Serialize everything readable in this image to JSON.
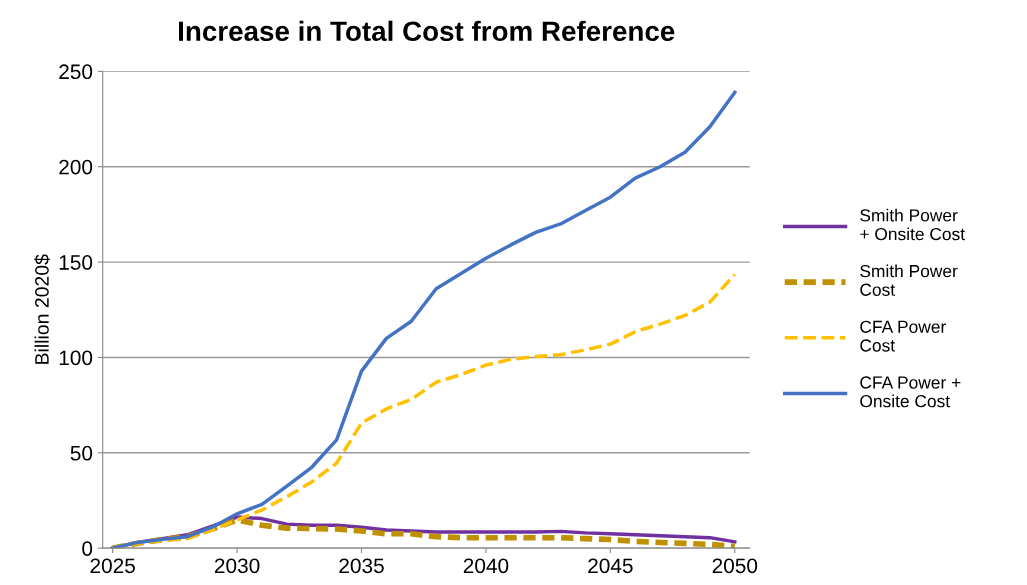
{
  "chart_data": {
    "type": "line",
    "title": "Increase in Total Cost from Reference",
    "ylabel": "Billion 2020$",
    "x": [
      2025,
      2026,
      2027,
      2028,
      2029,
      2030,
      2031,
      2032,
      2033,
      2034,
      2035,
      2036,
      2037,
      2038,
      2039,
      2040,
      2041,
      2042,
      2043,
      2044,
      2045,
      2046,
      2047,
      2048,
      2049,
      2050
    ],
    "xlim": [
      2024.6,
      2050.6
    ],
    "xticks": [
      2025,
      2030,
      2035,
      2040,
      2045,
      2050
    ],
    "ylim": [
      0,
      250
    ],
    "yticks": [
      0,
      50,
      100,
      150,
      200,
      250
    ],
    "grid": "y",
    "legend": "right",
    "marker": "none",
    "series": [
      {
        "name": "Smith Power\n+ Onsite Cost",
        "color": "#7030a0",
        "line_style": "solid",
        "values": [
          0,
          3,
          5,
          7,
          11.5,
          16.3,
          15.5,
          12.6,
          12,
          12,
          11,
          9.5,
          9,
          8.5,
          8.5,
          8.5,
          8.5,
          8.5,
          8.8,
          8,
          7.5,
          7,
          6.5,
          6,
          5.5,
          3.3
        ]
      },
      {
        "name": "Smith Power\nCost",
        "color": "#bf9000",
        "line_style": "dashed",
        "values": [
          0,
          2.5,
          4.5,
          6,
          10,
          14.8,
          12,
          10.5,
          10.3,
          10,
          9,
          7.5,
          7.5,
          6,
          5.5,
          5.5,
          5.5,
          5.5,
          5.5,
          5,
          4.5,
          3.5,
          3,
          2.5,
          2,
          1
        ]
      },
      {
        "name": "CFA Power\nCost",
        "color": "#ffc000",
        "line_style": "dashed",
        "values": [
          0,
          2.5,
          4,
          5,
          9.5,
          14.8,
          20,
          27,
          34.7,
          44.6,
          65.6,
          73,
          78,
          87,
          91,
          96,
          99,
          100.5,
          101.4,
          104,
          107,
          113.5,
          117.5,
          122,
          129,
          143.6
        ]
      },
      {
        "name": "CFA Power +\nOnsite Cost",
        "color": "#4472c4",
        "line_style": "solid",
        "values": [
          0,
          3,
          4.6,
          6,
          11,
          18,
          23,
          32.5,
          42.4,
          56.8,
          92.8,
          110,
          119,
          136,
          144,
          152,
          159,
          165.6,
          170,
          177,
          184,
          194,
          200,
          207.6,
          221,
          239
        ]
      }
    ]
  }
}
